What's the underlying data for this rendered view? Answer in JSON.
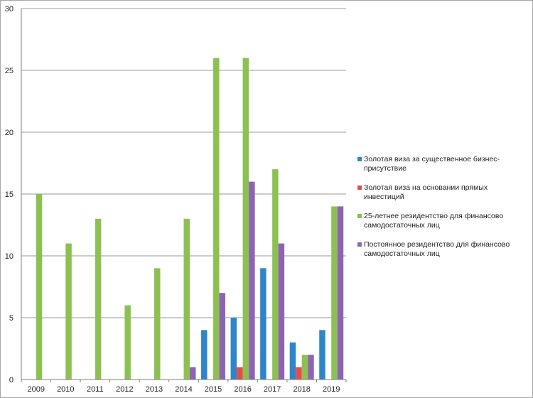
{
  "chart_data": {
    "type": "bar",
    "categories": [
      "2009",
      "2010",
      "2011",
      "2012",
      "2013",
      "2014",
      "2015",
      "2016",
      "2017",
      "2018",
      "2019"
    ],
    "ylim": [
      0,
      30
    ],
    "yticks": [
      0,
      5,
      10,
      15,
      20,
      25,
      30
    ],
    "grid": true,
    "legend_position": "right",
    "series": [
      {
        "name": "Золотая виза за существенное бизнес-присутствие",
        "color": "#2e86c8",
        "values": [
          0,
          0,
          0,
          0,
          0,
          0,
          4,
          5,
          9,
          3,
          4
        ]
      },
      {
        "name": "Золотая виза на основании прямых инвестиций",
        "color": "#e84a4a",
        "values": [
          0,
          0,
          0,
          0,
          0,
          0,
          0,
          1,
          0,
          1,
          0
        ]
      },
      {
        "name": "25-летнее резидентство для финансово самодостаточных лиц",
        "color": "#8cc152",
        "values": [
          15,
          11,
          13,
          6,
          9,
          13,
          26,
          26,
          17,
          2,
          14
        ]
      },
      {
        "name": "Постоянное резидентство для финансово самодостаточных лиц",
        "color": "#8e63b4",
        "values": [
          0,
          0,
          0,
          0,
          0,
          1,
          7,
          16,
          11,
          2,
          14
        ]
      }
    ]
  }
}
